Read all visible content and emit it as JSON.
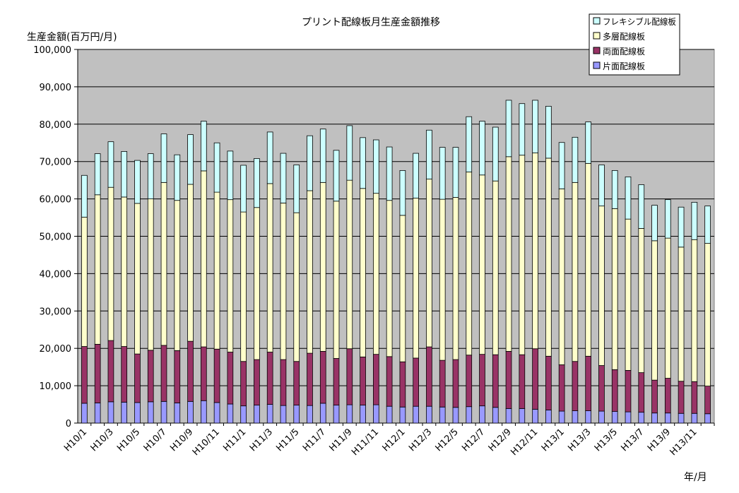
{
  "chart_data": {
    "type": "bar",
    "stacked": true,
    "title": "プリント配線板月生産金額推移",
    "ylabel": "生産金額(百万円/月)",
    "xlabel": "年/月",
    "ylim": [
      0,
      100000
    ],
    "yticks": [
      "0",
      "10,000",
      "20,000",
      "30,000",
      "40,000",
      "50,000",
      "60,000",
      "70,000",
      "80,000",
      "90,000",
      "100,000"
    ],
    "grid": true,
    "legend_position": "top-right",
    "categories": [
      "H10/1",
      "H10/2",
      "H10/3",
      "H10/4",
      "H10/5",
      "H10/6",
      "H10/7",
      "H10/8",
      "H10/9",
      "H10/10",
      "H10/11",
      "H10/12",
      "H11/1",
      "H11/2",
      "H11/3",
      "H11/4",
      "H11/5",
      "H11/6",
      "H11/7",
      "H11/8",
      "H11/9",
      "H11/10",
      "H11/11",
      "H11/12",
      "H12/1",
      "H12/2",
      "H12/3",
      "H12/4",
      "H12/5",
      "H12/6",
      "H12/7",
      "H12/8",
      "H12/9",
      "H12/10",
      "H12/11",
      "H12/12",
      "H13/1",
      "H13/2",
      "H13/3",
      "H13/4",
      "H13/5",
      "H13/6",
      "H13/7",
      "H13/8",
      "H13/9",
      "H13/10",
      "H13/11",
      "H13/12"
    ],
    "shown_tick_labels": [
      "H10/1",
      "H10/3",
      "H10/5",
      "H10/7",
      "H10/9",
      "H10/11",
      "H11/1",
      "H11/3",
      "H11/5",
      "H11/7",
      "H11/9",
      "H11/11",
      "H12/1",
      "H12/3",
      "H12/5",
      "H12/7",
      "H12/9",
      "H12/11",
      "H13/1",
      "H13/3",
      "H13/5",
      "H13/7",
      "H13/9",
      "H13/11"
    ],
    "series": [
      {
        "name": "片面配線板",
        "color": "#9999ff",
        "values": [
          5300,
          5400,
          5700,
          5600,
          5500,
          5700,
          5800,
          5400,
          5800,
          6000,
          5500,
          5100,
          4600,
          4800,
          5000,
          4700,
          4800,
          4700,
          5300,
          4800,
          4900,
          4800,
          4900,
          4500,
          4300,
          4500,
          4500,
          4300,
          4200,
          4400,
          4600,
          4200,
          3900,
          3900,
          3700,
          3500,
          3200,
          3300,
          3300,
          3200,
          3100,
          3000,
          2900,
          2700,
          2700,
          2600,
          2600,
          2500
        ]
      },
      {
        "name": "両面配線板",
        "color": "#993366",
        "values": [
          15200,
          15700,
          16400,
          14900,
          13000,
          13800,
          15000,
          14000,
          16100,
          14400,
          14300,
          13900,
          11900,
          12200,
          14000,
          12300,
          11700,
          14000,
          13900,
          12500,
          15000,
          12900,
          13500,
          13300,
          12100,
          12900,
          15900,
          12500,
          12800,
          13800,
          13800,
          14100,
          15300,
          14400,
          16200,
          14400,
          12400,
          13200,
          14600,
          12200,
          11200,
          11100,
          10600,
          8800,
          9300,
          8600,
          8500,
          7400
        ]
      },
      {
        "name": "多層配線板",
        "color": "#ffffcc",
        "values": [
          34600,
          40000,
          41000,
          40000,
          40300,
          40500,
          43600,
          40200,
          42000,
          47100,
          42000,
          40800,
          40000,
          40700,
          45100,
          41900,
          39800,
          43500,
          45200,
          42100,
          45100,
          45100,
          43100,
          41800,
          39200,
          42800,
          44900,
          43100,
          43400,
          49000,
          48000,
          46500,
          52100,
          53400,
          52400,
          53000,
          47100,
          47900,
          51600,
          42700,
          43100,
          40500,
          38600,
          37300,
          37500,
          35900,
          38000,
          38200
        ]
      },
      {
        "name": "フレキシブル配線板",
        "color": "#ccffff",
        "values": [
          11200,
          11000,
          12200,
          12200,
          11500,
          12100,
          13000,
          12200,
          13300,
          13300,
          13200,
          13000,
          12500,
          13100,
          13800,
          13300,
          12800,
          14700,
          14300,
          13600,
          14600,
          13600,
          14300,
          14300,
          12000,
          12000,
          13100,
          13900,
          13400,
          14800,
          14400,
          14400,
          15100,
          13800,
          14100,
          13900,
          12400,
          12100,
          11100,
          11000,
          10200,
          11300,
          11700,
          9500,
          10300,
          10700,
          10000,
          10000
        ]
      }
    ],
    "legend_order": [
      "フレキシブル配線板",
      "多層配線板",
      "両面配線板",
      "片面配線板"
    ]
  }
}
